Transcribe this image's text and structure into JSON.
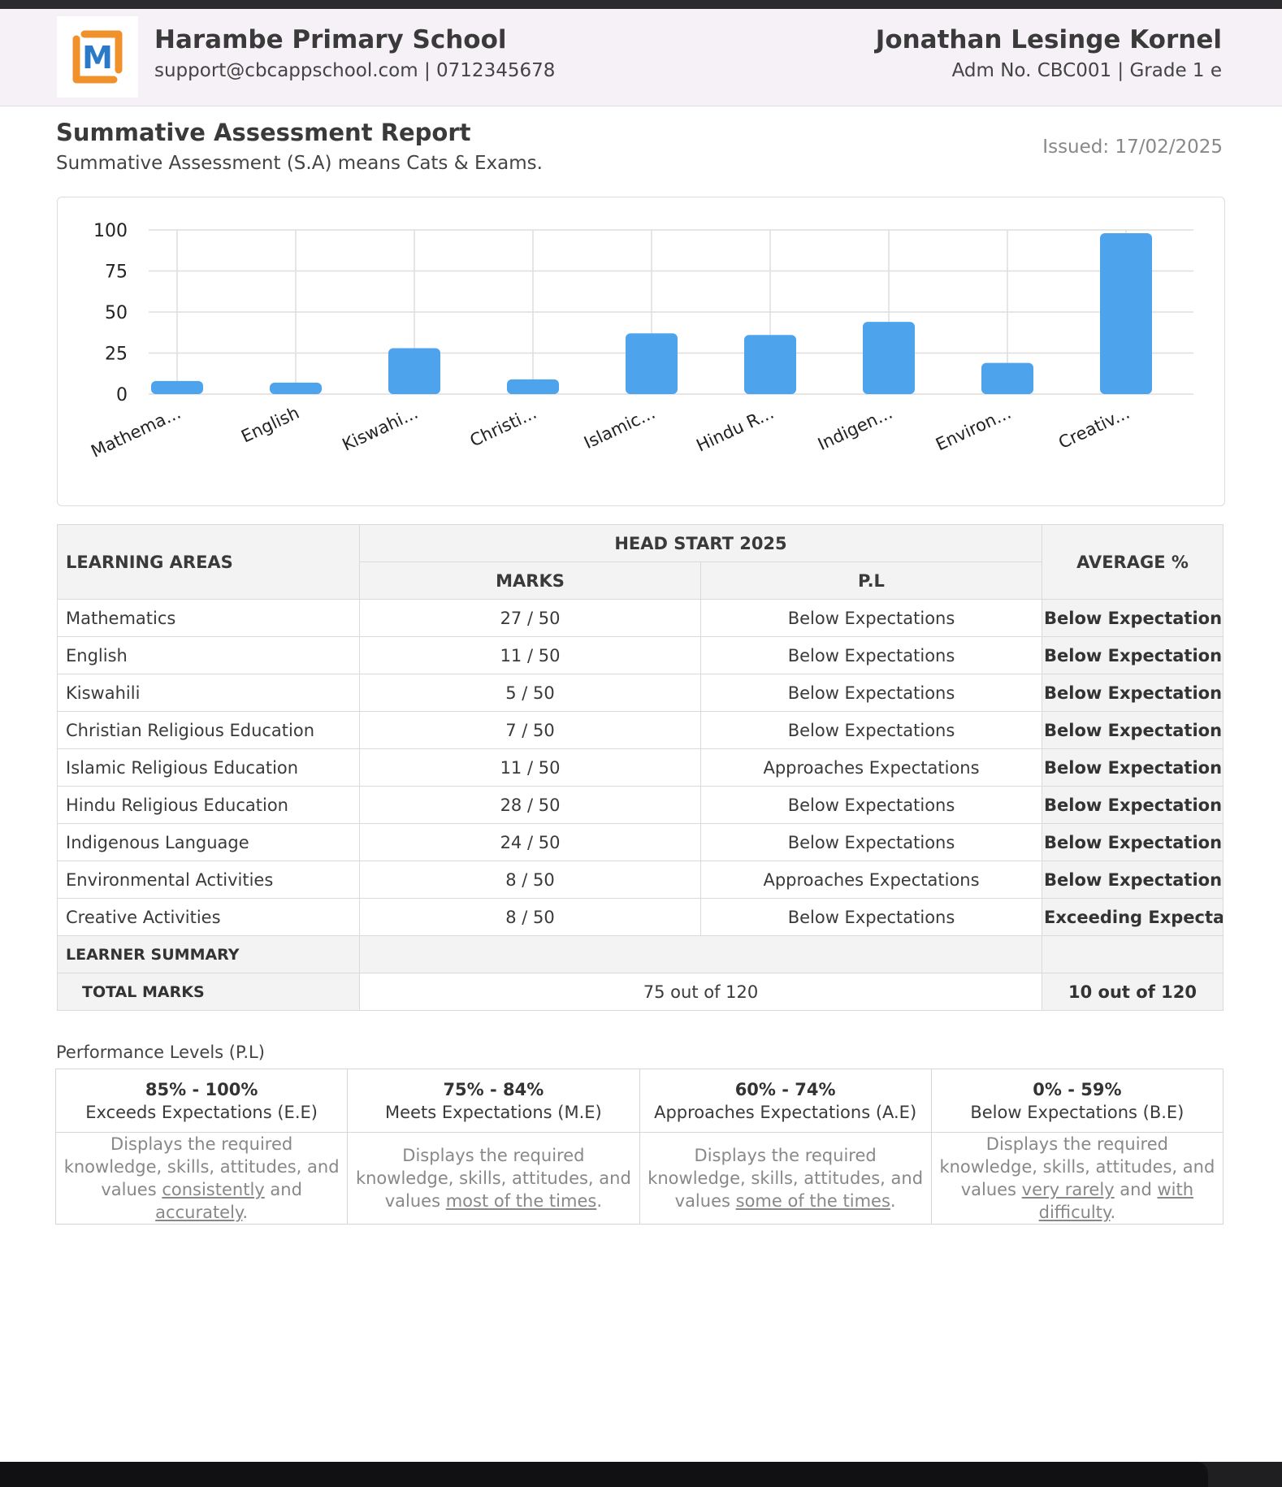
{
  "header": {
    "school_name": "Harambe Primary School",
    "school_contact": "support@cbcappschool.com | 0712345678",
    "student_name": "Jonathan Lesinge Kornel",
    "student_info": "Adm No. CBC001 | Grade 1 e",
    "logo_letter": "M"
  },
  "report": {
    "title": "Summative Assessment Report",
    "subtitle": "Summative Assessment (S.A) means Cats & Exams.",
    "issued": "Issued: 17/02/2025"
  },
  "chart_data": {
    "type": "bar",
    "categories": [
      "Mathema...",
      "English",
      "Kiswahi...",
      "Christi...",
      "Islamic...",
      "Hindu R...",
      "Indigen...",
      "Environ...",
      "Creativ..."
    ],
    "values": [
      8,
      7,
      28,
      9,
      37,
      36,
      44,
      19,
      98
    ],
    "ylim": [
      0,
      100
    ],
    "yticks": [
      "0",
      "25",
      "50",
      "75",
      "100"
    ],
    "grid": true,
    "bar_color": "#4da3ec"
  },
  "table": {
    "col_learning_areas": "LEARNING AREAS",
    "col_group": "HEAD START 2025",
    "col_marks": "MARKS",
    "col_pl": "P.L",
    "col_average": "AVERAGE %",
    "rows": [
      {
        "area": "Mathematics",
        "marks": "27 / 50",
        "pl": "Below Expectations",
        "avg": "Below Expectations"
      },
      {
        "area": "English",
        "marks": "11 / 50",
        "pl": "Below Expectations",
        "avg": "Below Expectations"
      },
      {
        "area": "Kiswahili",
        "marks": "5 / 50",
        "pl": "Below Expectations",
        "avg": "Below Expectations"
      },
      {
        "area": "Christian Religious Education",
        "marks": "7 / 50",
        "pl": "Below Expectations",
        "avg": "Below Expectations"
      },
      {
        "area": "Islamic Religious Education",
        "marks": "11 / 50",
        "pl": "Approaches Expectations",
        "avg": "Below Expectations"
      },
      {
        "area": "Hindu Religious Education",
        "marks": "28 / 50",
        "pl": "Below Expectations",
        "avg": "Below Expectations"
      },
      {
        "area": "Indigenous Language",
        "marks": "24 / 50",
        "pl": "Below Expectations",
        "avg": "Below Expectations"
      },
      {
        "area": "Environmental Activities",
        "marks": "8 / 50",
        "pl": "Approaches Expectations",
        "avg": "Below Expectations"
      },
      {
        "area": "Creative Activities",
        "marks": "8 / 50",
        "pl": "Below Expectations",
        "avg": "Exceeding Expectatio"
      }
    ],
    "summary_label": "LEARNER SUMMARY",
    "total_label": "TOTAL MARKS",
    "total_value": "75 out of 120",
    "total_avg": "10 out of 120"
  },
  "performance_levels": {
    "title": "Performance Levels (P.L)",
    "levels": [
      {
        "range": "85% - 100%",
        "name": "Exceeds Expectations (E.E)",
        "desc_prefix": "Displays the required knowledge, skills, attitudes, and values ",
        "u1": "consistently",
        "mid": " and ",
        "u2": "accurately",
        "suffix": "."
      },
      {
        "range": "75% - 84%",
        "name": "Meets Expectations (M.E)",
        "desc_prefix": "Displays the required knowledge, skills, attitudes, and values ",
        "u1": "most of the times",
        "mid": "",
        "u2": "",
        "suffix": "."
      },
      {
        "range": "60% - 74%",
        "name": "Approaches Expectations (A.E)",
        "desc_prefix": "Displays the required knowledge, skills, attitudes, and values ",
        "u1": "some of the times",
        "mid": "",
        "u2": "",
        "suffix": "."
      },
      {
        "range": "0% - 59%",
        "name": "Below Expectations (B.E)",
        "desc_prefix": "Displays the required knowledge, skills, attitudes, and values ",
        "u1": "very rarely",
        "mid": " and ",
        "u2": "with difficulty",
        "suffix": "."
      }
    ]
  }
}
